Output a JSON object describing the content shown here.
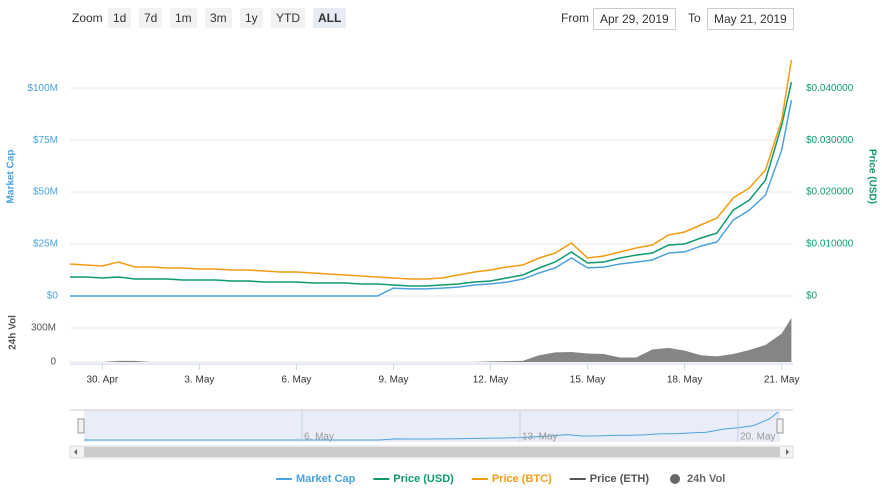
{
  "controls": {
    "zoom_label": "Zoom",
    "zoom_buttons": [
      "1d",
      "7d",
      "1m",
      "3m",
      "1y",
      "YTD",
      "ALL"
    ],
    "active_button": 6,
    "from_label": "From",
    "from_date": "Apr 29, 2019",
    "to_label": "To",
    "to_date": "May 21, 2019"
  },
  "chart_data": {
    "type": "line",
    "x": [
      0,
      0.5,
      1,
      1.5,
      2,
      2.5,
      3,
      3.5,
      4,
      4.5,
      5,
      5.5,
      6,
      6.5,
      7,
      7.5,
      8,
      8.5,
      9,
      9.5,
      10,
      10.5,
      11,
      11.5,
      12,
      12.5,
      13,
      13.5,
      14,
      14.5,
      15,
      15.5,
      16,
      16.5,
      17,
      17.5,
      18,
      18.5,
      19,
      19.5,
      20,
      20.5,
      21,
      21.5,
      22,
      22.3
    ],
    "xlim": [
      0,
      22.35
    ],
    "xticks": [
      {
        "value": 1,
        "label": "30. Apr"
      },
      {
        "value": 4,
        "label": "3. May"
      },
      {
        "value": 7,
        "label": "6. May"
      },
      {
        "value": 10,
        "label": "9. May"
      },
      {
        "value": 13,
        "label": "12. May"
      },
      {
        "value": 16,
        "label": "15. May"
      },
      {
        "value": 19,
        "label": "18. May"
      },
      {
        "value": 22,
        "label": "21. May"
      }
    ],
    "y_label": "Market Cap",
    "ylim": [
      0,
      115000000
    ],
    "yticks": [
      {
        "value": 0,
        "label": "$0"
      },
      {
        "value": 25000000,
        "label": "$25M"
      },
      {
        "value": 50000000,
        "label": "$50M"
      },
      {
        "value": 75000000,
        "label": "$75M"
      },
      {
        "value": 100000000,
        "label": "$100M"
      }
    ],
    "y2_label": "Price (USD)",
    "y2lim": [
      0,
      0.046
    ],
    "y2ticks": [
      {
        "value": 0,
        "label": "$0"
      },
      {
        "value": 0.01,
        "label": "$0.010000"
      },
      {
        "value": 0.02,
        "label": "$0.020000"
      },
      {
        "value": 0.03,
        "label": "$0.030000"
      },
      {
        "value": 0.04,
        "label": "$0.040000"
      }
    ],
    "y3lim": [
      0,
      4.9e-06
    ],
    "grid": true,
    "series": [
      {
        "name": "Market Cap",
        "color": "#4aa3df",
        "axis": "y",
        "values": [
          0,
          0,
          0,
          0,
          0,
          0,
          0,
          0,
          0,
          0,
          0,
          0,
          0,
          0,
          0,
          0,
          0,
          0,
          0,
          0,
          3800000,
          3400000,
          3400000,
          3800000,
          4300000,
          5300000,
          5800000,
          6700000,
          8200000,
          11100000,
          13500000,
          18300000,
          13500000,
          13900000,
          15400000,
          16300000,
          17300000,
          20700000,
          21200000,
          24000000,
          26000000,
          36500000,
          41300000,
          48600000,
          70200000,
          94200000
        ]
      },
      {
        "name": "Price (USD)",
        "color": "#0e9a6e",
        "axis": "y2",
        "values": [
          0.00365,
          0.00365,
          0.00346,
          0.00365,
          0.00327,
          0.00327,
          0.00327,
          0.00308,
          0.00308,
          0.00308,
          0.00288,
          0.00288,
          0.00269,
          0.00269,
          0.00269,
          0.0025,
          0.0025,
          0.0025,
          0.00231,
          0.00231,
          0.00212,
          0.00192,
          0.00192,
          0.00212,
          0.00231,
          0.00269,
          0.00288,
          0.00346,
          0.00404,
          0.00538,
          0.00654,
          0.00846,
          0.00635,
          0.00654,
          0.00731,
          0.00788,
          0.00827,
          0.00981,
          0.01,
          0.01115,
          0.01212,
          0.01654,
          0.01846,
          0.02231,
          0.03288,
          0.04115
        ]
      },
      {
        "name": "Price (BTC)",
        "color": "#f39c12",
        "axis": "y3",
        "values": [
          6.56e-07,
          6.36e-07,
          6.15e-07,
          6.97e-07,
          5.95e-07,
          5.95e-07,
          5.74e-07,
          5.74e-07,
          5.54e-07,
          5.54e-07,
          5.33e-07,
          5.33e-07,
          5.13e-07,
          4.92e-07,
          4.92e-07,
          4.72e-07,
          4.51e-07,
          4.31e-07,
          4.1e-07,
          3.9e-07,
          3.69e-07,
          3.49e-07,
          3.49e-07,
          3.69e-07,
          4.31e-07,
          4.92e-07,
          5.33e-07,
          5.95e-07,
          6.36e-07,
          7.79e-07,
          8.82e-07,
          1.087e-06,
          7.79e-07,
          8.2e-07,
          9.02e-07,
          9.84e-07,
          1.046e-06,
          1.251e-06,
          1.312e-06,
          1.456e-06,
          1.599e-06,
          2.009e-06,
          2.214e-06,
          2.583e-06,
          3.608e-06,
          4.838e-06
        ]
      },
      {
        "name": "Price (ETH)",
        "color": "#555555",
        "axis": "y3",
        "visible": false,
        "values": [
          null,
          null,
          null,
          null,
          null,
          null,
          null,
          null,
          null,
          null,
          null,
          null,
          null,
          null,
          null,
          null,
          null,
          null,
          null,
          null,
          null,
          null,
          null,
          null,
          null,
          null,
          null,
          null,
          null,
          null,
          null,
          null,
          null,
          null,
          null,
          null,
          null,
          null,
          null,
          null,
          null,
          null,
          null,
          null,
          null,
          null
        ]
      }
    ],
    "volume": {
      "name": "24h Vol",
      "color": "#666666",
      "y_label": "24h Vol",
      "ylim": [
        0,
        520000000
      ],
      "yticks": [
        0,
        {
          "value": 300000000,
          "label": "300M"
        }
      ],
      "values": [
        0,
        0,
        0,
        10000000,
        10000000,
        0,
        0,
        0,
        0,
        0,
        0,
        0,
        0,
        0,
        0,
        0,
        0,
        0,
        0,
        0,
        0,
        0,
        0,
        0,
        0,
        0,
        5000000,
        8000000,
        10000000,
        60000000,
        85000000,
        88000000,
        75000000,
        70000000,
        40000000,
        40000000,
        110000000,
        124000000,
        100000000,
        60000000,
        50000000,
        70000000,
        106000000,
        150000000,
        250000000,
        388000000
      ]
    },
    "navigator": {
      "xticks": [
        {
          "value": 7,
          "label": "6. May"
        },
        {
          "value": 14,
          "label": "13. May"
        },
        {
          "value": 21,
          "label": "20. May"
        }
      ]
    }
  }
}
